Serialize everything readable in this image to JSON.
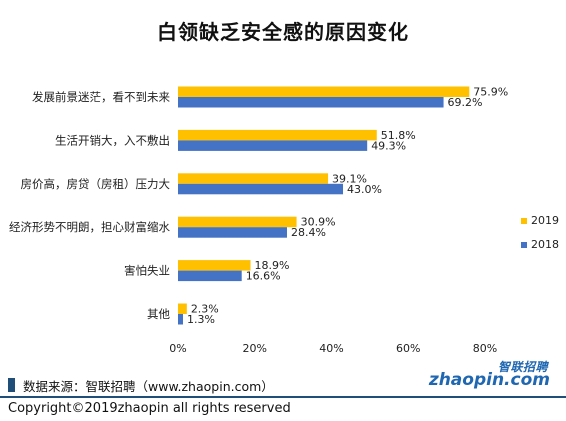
{
  "colors": {
    "y2019": "#ffc000",
    "y2018": "#4472c4",
    "accent": "#1f4e79",
    "brand": "#1f67b1"
  },
  "source": "数据来源：智联招聘（www.zhaopin.com）",
  "copyright": "Copyright©2019zhaopin all rights reserved",
  "logo": {
    "cn": "智联招聘",
    "en": "zhaopin.com"
  },
  "chart_data": {
    "type": "bar",
    "orientation": "horizontal",
    "title": "白领缺乏安全感的原因变化",
    "xlabel": "",
    "ylabel": "",
    "categories": [
      "发展前景迷茫，看不到未来",
      "生活开销大，入不敷出",
      "房价高，房贷（房租）压力大",
      "经济形势不明朗，担心财富缩水",
      "害怕失业",
      "其他"
    ],
    "series": [
      {
        "name": "2019",
        "values": [
          75.9,
          51.8,
          39.1,
          30.9,
          18.9,
          2.3
        ],
        "labels": [
          "75.9%",
          "51.8%",
          "39.1%",
          "30.9%",
          "18.9%",
          "2.3%"
        ]
      },
      {
        "name": "2018",
        "values": [
          69.2,
          49.3,
          43.0,
          28.4,
          16.6,
          1.3
        ],
        "labels": [
          "69.2%",
          "49.3%",
          "43.0%",
          "28.4%",
          "16.6%",
          "1.3%"
        ]
      }
    ],
    "xlim": [
      0,
      80
    ],
    "xticks": [
      0,
      20,
      40,
      60,
      80
    ],
    "xtick_labels": [
      "0%",
      "20%",
      "40%",
      "60%",
      "80%"
    ],
    "grid": false,
    "legend_position": "right"
  }
}
